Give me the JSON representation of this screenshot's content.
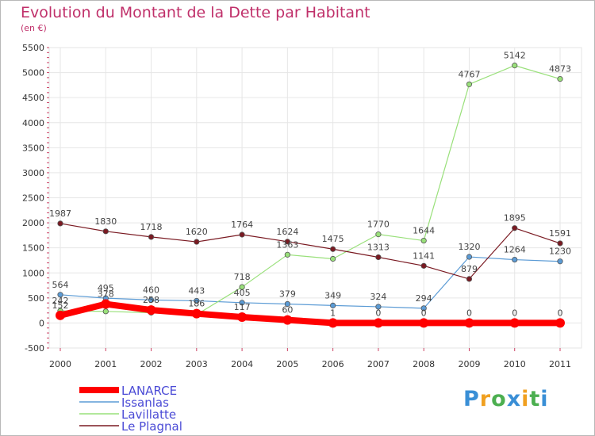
{
  "chart_data": {
    "type": "line",
    "title": "Evolution du Montant de la Dette par Habitant",
    "subtitle": "(en €)",
    "x": [
      "2000",
      "2001",
      "2002",
      "2003",
      "2004",
      "2005",
      "2006",
      "2007",
      "2008",
      "2009",
      "2010",
      "2011"
    ],
    "ylim": [
      -500,
      5500
    ],
    "yticks": [
      -500,
      0,
      500,
      1000,
      1500,
      2000,
      2500,
      3000,
      3500,
      4000,
      4500,
      5000,
      5500
    ],
    "grid": true,
    "legend_position": "bottom-left",
    "series": [
      {
        "name": "LANARCE",
        "color": "#ff0000",
        "width": 8,
        "values": [
          152,
          378,
          258,
          186,
          117,
          60,
          1,
          0,
          0,
          0,
          0,
          0
        ],
        "labels": [
          "152",
          "378",
          "258",
          "186",
          "117",
          "60",
          "1",
          "0",
          "0",
          "0",
          "0",
          "0"
        ]
      },
      {
        "name": "Issanlas",
        "color": "#5b9bd5",
        "width": 1.2,
        "values": [
          564,
          495,
          460,
          443,
          405,
          379,
          349,
          324,
          294,
          1320,
          1264,
          1230
        ],
        "labels": [
          "564",
          "495",
          "460",
          "443",
          "405",
          "379",
          "349",
          "324",
          "294",
          "1320",
          "1264",
          "1230"
        ]
      },
      {
        "name": "Lavillatte",
        "color": "#99e07a",
        "width": 1.2,
        "values": [
          242,
          231,
          205,
          166,
          718,
          1363,
          1281,
          1770,
          1644,
          4767,
          5142,
          4873
        ],
        "labels": [
          "242",
          "",
          "",
          "",
          "718",
          "1363",
          "",
          "1770",
          "1644",
          "4767",
          "5142",
          "4873"
        ]
      },
      {
        "name": "Le Plagnal",
        "color": "#7a1a22",
        "width": 1.2,
        "values": [
          1987,
          1830,
          1718,
          1620,
          1764,
          1624,
          1475,
          1313,
          1141,
          879,
          1895,
          1591
        ],
        "labels": [
          "1987",
          "1830",
          "1718",
          "1620",
          "1764",
          "1624",
          "1475",
          "1313",
          "1141",
          "879",
          "1895",
          "1591"
        ]
      }
    ]
  },
  "logo": {
    "letters": [
      "P",
      "r",
      "o",
      "x",
      "i",
      "t",
      "i"
    ],
    "colors": [
      "#3a8fd6",
      "#f0a020",
      "#4caf50",
      "#3a8fd6",
      "#f0a020",
      "#4caf50",
      "#3a8fd6"
    ]
  }
}
